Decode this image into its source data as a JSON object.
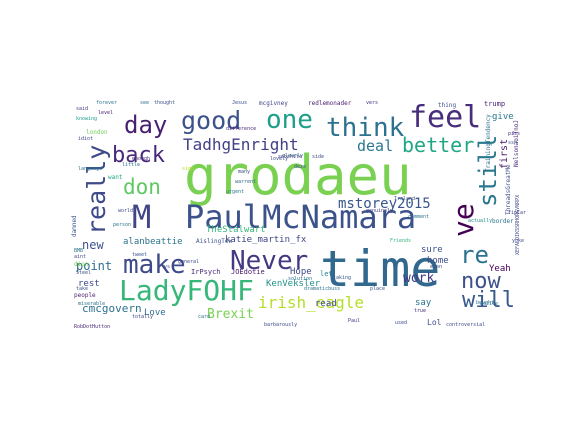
{
  "words": [
    {
      "text": "grodaeu",
      "color": "#7ad151"
    },
    {
      "text": "time",
      "color": "#31688e"
    },
    {
      "text": "PaulMcNamara",
      "color": "#3b528b"
    },
    {
      "text": "LadyFOHF",
      "color": "#35b779"
    },
    {
      "text": "make",
      "color": "#3e4a89"
    },
    {
      "text": "Never",
      "color": "#443983"
    },
    {
      "text": "feel",
      "color": "#472d7b"
    },
    {
      "text": "think",
      "color": "#2c728e"
    },
    {
      "text": "one",
      "color": "#1f9e89"
    },
    {
      "text": "good",
      "color": "#3b528b"
    },
    {
      "text": "day",
      "color": "#481f70"
    },
    {
      "text": "back",
      "color": "#482878"
    },
    {
      "text": "don",
      "color": "#5ec962"
    },
    {
      "text": "TadhgEnright",
      "color": "#424086"
    },
    {
      "text": "deal",
      "color": "#2a788e"
    },
    {
      "text": "better",
      "color": "#21a685"
    },
    {
      "text": "really",
      "color": "#3e4a89"
    },
    {
      "text": "ve",
      "color": "#440154"
    },
    {
      "text": "still",
      "color": "#2a788e"
    },
    {
      "text": "re",
      "color": "#2c728e"
    },
    {
      "text": "now",
      "color": "#3b528b"
    },
    {
      "text": "will",
      "color": "#38598c"
    },
    {
      "text": "irish_eagle",
      "color": "#b5de2b"
    },
    {
      "text": "Brexit",
      "color": "#7ad151"
    },
    {
      "text": "mstorey2015",
      "color": "#39568c"
    },
    {
      "text": "work",
      "color": "#443983"
    },
    {
      "text": "M",
      "color": "#414487"
    },
    {
      "text": "new",
      "color": "#3b528b"
    },
    {
      "text": "point",
      "color": "#2d708e"
    },
    {
      "text": "rest",
      "color": "#3e4989"
    },
    {
      "text": "cmcgovern",
      "color": "#2c728e"
    },
    {
      "text": "katie_martin_fx",
      "color": "#404588"
    },
    {
      "text": "alanbeattie",
      "color": "#2c728e"
    },
    {
      "text": "TheStalwart",
      "color": "#35b779"
    },
    {
      "text": "Hope",
      "color": "#3e4a89"
    },
    {
      "text": "KenVeksler",
      "color": "#21918c"
    },
    {
      "text": "read",
      "color": "#404688"
    },
    {
      "text": "sure",
      "color": "#3b528b"
    },
    {
      "text": "home",
      "color": "#3e4a89"
    },
    {
      "text": "Yeah",
      "color": "#440154"
    },
    {
      "text": "say",
      "color": "#2d708e"
    },
    {
      "text": "Lol",
      "color": "#3e4a89"
    },
    {
      "text": "Love",
      "color": "#2e6e8e"
    },
    {
      "text": "first",
      "color": "#481567"
    },
    {
      "text": "give",
      "color": "#2a788e"
    },
    {
      "text": "let",
      "color": "#26828e"
    },
    {
      "text": "IrPsych",
      "color": "#472c7a"
    },
    {
      "text": "JOEdotie",
      "color": "#48186a"
    },
    {
      "text": "AislingTex",
      "color": "#3b528b"
    },
    {
      "text": "trump",
      "color": "#482475"
    },
    {
      "text": "thing",
      "color": "#3b528b"
    },
    {
      "text": "want",
      "color": "#21a685"
    },
    {
      "text": "london",
      "color": "#73d056"
    },
    {
      "text": "forever",
      "color": "#2c728e"
    },
    {
      "text": "said",
      "color": "#453781"
    },
    {
      "text": "level",
      "color": "#481a6c"
    },
    {
      "text": "little",
      "color": "#31688e"
    },
    {
      "text": "difference",
      "color": "#482878"
    },
    {
      "text": "Jesus",
      "color": "#3e4a89"
    },
    {
      "text": "mcgivney",
      "color": "#414487"
    },
    {
      "text": "redlemonader",
      "color": "#481f70"
    },
    {
      "text": "vers",
      "color": "#46327e"
    },
    {
      "text": "see",
      "color": "#2c728e"
    },
    {
      "text": "thought",
      "color": "#3b528b"
    },
    {
      "text": "knowing",
      "color": "#1f9e89"
    },
    {
      "text": "idiot",
      "color": "#3e4a89"
    },
    {
      "text": "language",
      "color": "#2a788e"
    },
    {
      "text": "enough",
      "color": "#472d7b"
    },
    {
      "text": "sign",
      "color": "#b8de29"
    },
    {
      "text": "warrent",
      "color": "#31688e"
    },
    {
      "text": "many",
      "color": "#3b528b"
    },
    {
      "text": "Paul",
      "color": "#46337f"
    },
    {
      "text": "card",
      "color": "#2c728e"
    },
    {
      "text": "totally",
      "color": "#3e4a89"
    },
    {
      "text": "people",
      "color": "#481f70"
    },
    {
      "text": "Steel",
      "color": "#3b528b"
    },
    {
      "text": "miserable",
      "color": "#2c728e"
    },
    {
      "text": "general",
      "color": "#3e4a89"
    },
    {
      "text": "genuinely",
      "color": "#414487"
    },
    {
      "text": "comment",
      "color": "#2c728e"
    },
    {
      "text": "place",
      "color": "#3b528b"
    },
    {
      "text": "used",
      "color": "#3e4a89"
    },
    {
      "text": "even",
      "color": "#3e4a89"
    },
    {
      "text": "actually",
      "color": "#21918c"
    },
    {
      "text": "controversial",
      "color": "#3e4a89"
    },
    {
      "text": "urgent",
      "color": "#2a788e"
    },
    {
      "text": "solution",
      "color": "#2c728e"
    },
    {
      "text": "taking",
      "color": "#3b528b"
    },
    {
      "text": "RobDotHutton",
      "color": "#482878"
    },
    {
      "text": "true",
      "color": "#472d7b"
    },
    {
      "text": "take",
      "color": "#3b528b"
    },
    {
      "text": "border",
      "color": "#2c728e"
    },
    {
      "text": "sebshite",
      "color": "#46327e"
    },
    {
      "text": "lovely",
      "color": "#3e4a89"
    },
    {
      "text": "clearly",
      "color": "#31688e"
    },
    {
      "text": "notice",
      "color": "#2c728e"
    },
    {
      "text": "piss",
      "color": "#482878"
    },
    {
      "text": "ssn",
      "color": "#3b528b"
    },
    {
      "text": "yoke",
      "color": "#3e4a89"
    },
    {
      "text": "fipCar",
      "color": "#414487"
    },
    {
      "text": "TrainingTendency",
      "color": "#2c728e"
    },
    {
      "text": "NelsonaoiTnoJ",
      "color": "#472d7b"
    },
    {
      "text": "ThreadsGreatMe",
      "color": "#3b528b"
    },
    {
      "text": "XEFALOIKSSRHORGVNRPX",
      "color": "#3e4a89"
    },
    {
      "text": "damned",
      "color": "#3b528b"
    },
    {
      "text": "BMB",
      "color": "#2c728e"
    },
    {
      "text": "aint",
      "color": "#3e4a89"
    },
    {
      "text": "dion",
      "color": "#7ad151"
    },
    {
      "text": "vs",
      "color": "#3b528b"
    },
    {
      "text": "barbarously",
      "color": "#3e4a89"
    },
    {
      "text": "dramaticbuss",
      "color": "#2c728e"
    },
    {
      "text": "Ireland",
      "color": "#3b528b"
    },
    {
      "text": "side",
      "color": "#3e4a89"
    },
    {
      "text": "tweet",
      "color": "#3b528b"
    },
    {
      "text": "person",
      "color": "#2c728e"
    },
    {
      "text": "world",
      "color": "#3e4a89"
    },
    {
      "text": "Friends",
      "color": "#35b779"
    },
    {
      "text": "bought",
      "color": "#2c728e"
    },
    {
      "text": "deze",
      "color": "#3b528b"
    }
  ]
}
